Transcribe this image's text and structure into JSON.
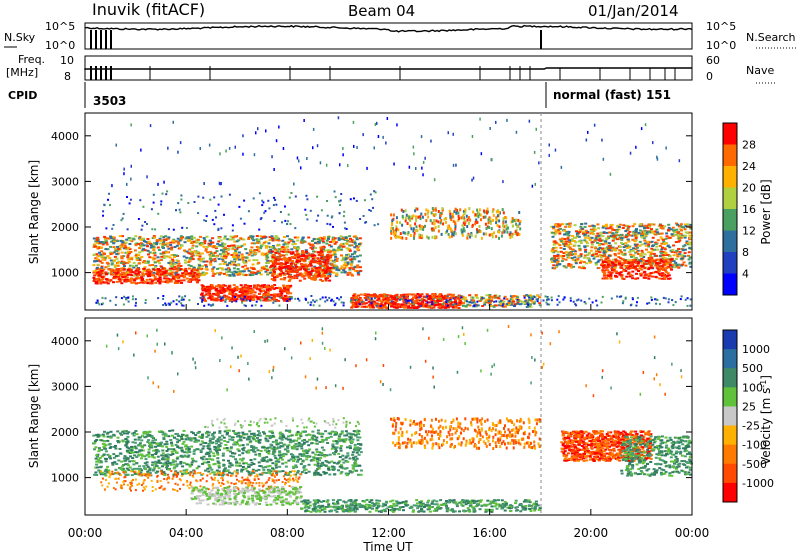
{
  "header": {
    "radar": "Inuvik (fitACF)",
    "beam": "Beam 04",
    "date": "01/Jan/2014"
  },
  "panels": {
    "nsky_label": "N.Sky",
    "nsky_ticks": [
      "10^5",
      "10^0"
    ],
    "nsearch_label": "N.Search",
    "nsearch_ticks": [
      "10^5",
      "10^0"
    ],
    "freq_label": "Freq.",
    "freq_unit": "[MHz]",
    "freq_ticks": [
      "10",
      "8"
    ],
    "nave_label": "Nave",
    "nave_ticks": [
      "60",
      "0"
    ],
    "cpid_label": "CPID",
    "cpid_value_1": "3503",
    "cpid_value_2": "normal (fast) 151"
  },
  "chart_data": [
    {
      "type": "heatmap",
      "title": "",
      "ylabel": "Slant Range [km]",
      "xlabel": "",
      "xlim": [
        "00:00",
        "00:00"
      ],
      "ylim": [
        180,
        4500
      ],
      "y_ticks": [
        "1000",
        "2000",
        "3000",
        "4000"
      ],
      "colorbar": {
        "label": "Power [dB]",
        "ticks": [
          "28",
          "24",
          "20",
          "16",
          "12",
          "8",
          "4"
        ],
        "colors": [
          "#ff0000",
          "#ff6a00",
          "#ffb000",
          "#b0d040",
          "#4aa060",
          "#2e6f9e",
          "#2040c0",
          "#0000ff"
        ]
      }
    },
    {
      "type": "heatmap",
      "title": "",
      "ylabel": "Slant Range [km]",
      "xlabel": "Time UT",
      "x_ticks": [
        "00:00",
        "04:00",
        "08:00",
        "12:00",
        "16:00",
        "20:00",
        "00:00"
      ],
      "ylim": [
        180,
        4500
      ],
      "y_ticks": [
        "1000",
        "2000",
        "3000",
        "4000"
      ],
      "colorbar": {
        "label": "Velocity [m s^-1]",
        "ticks": [
          "1000",
          "500",
          "100",
          "25",
          "-25",
          "-100",
          "-500",
          "-1000"
        ],
        "colors": [
          "#1a3ab0",
          "#2a6fa0",
          "#3f8a66",
          "#5fc23a",
          "#c8c8c8",
          "#ffb000",
          "#ff7a00",
          "#ff4a00",
          "#ff0000"
        ]
      }
    }
  ]
}
